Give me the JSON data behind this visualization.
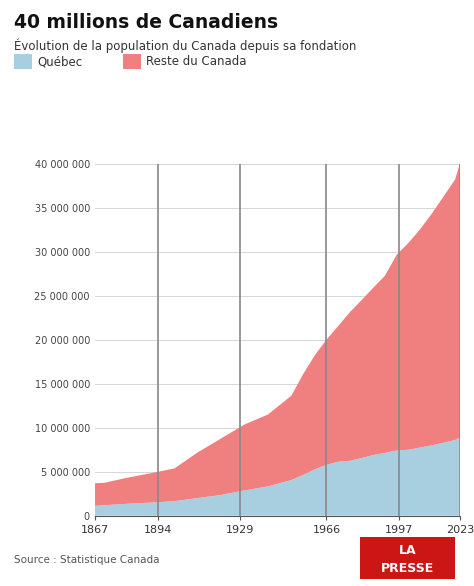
{
  "title": "40 millions de Canadiens",
  "subtitle": "Évolution de la population du Canada depuis sa fondation",
  "source": "Source : Statistique Canada",
  "legend_quebec": "Québec",
  "legend_reste": "Reste du Canada",
  "color_quebec": "#a8cfe0",
  "color_reste": "#f08080",
  "background_color": "#ffffff",
  "vline_color": "#888888",
  "vline_years": [
    1894,
    1929,
    1966,
    1997,
    2023
  ],
  "years": [
    1867,
    1871,
    1881,
    1891,
    1901,
    1911,
    1921,
    1931,
    1941,
    1951,
    1956,
    1961,
    1966,
    1971,
    1976,
    1981,
    1986,
    1991,
    1996,
    2001,
    2006,
    2011,
    2016,
    2021,
    2023
  ],
  "quebec": [
    1111566,
    1191516,
    1359027,
    1488535,
    1648898,
    2005776,
    2360510,
    2874255,
    3331882,
    4055681,
    4628378,
    5259211,
    5780845,
    6137305,
    6234445,
    6547805,
    6893900,
    7138795,
    7419850,
    7501526,
    7742860,
    8007656,
    8294656,
    8604495,
    8873000
  ],
  "canada": [
    3689257,
    3737257,
    4324810,
    4833239,
    5371315,
    7206643,
    8788483,
    10376786,
    11506655,
    13648000,
    16081000,
    18238000,
    20015000,
    21568000,
    23150000,
    24516000,
    25923000,
    27297000,
    29672000,
    31020000,
    32570000,
    34343000,
    36290000,
    38250000,
    40000000
  ],
  "ylim": [
    0,
    40000000
  ],
  "yticks": [
    0,
    5000000,
    10000000,
    15000000,
    20000000,
    25000000,
    30000000,
    35000000,
    40000000
  ],
  "ytick_labels": [
    "0",
    "5 000 000",
    "10 000 000",
    "15 000 000",
    "20 000 000",
    "25 000 000",
    "30 000 000",
    "35 000 000",
    "40 000 000"
  ],
  "xticks": [
    1867,
    1894,
    1929,
    1966,
    1997,
    2023
  ],
  "xlim": [
    1867,
    2023
  ],
  "lapresse_color": "#cc1616",
  "lapresse_text_color": "#ffffff"
}
